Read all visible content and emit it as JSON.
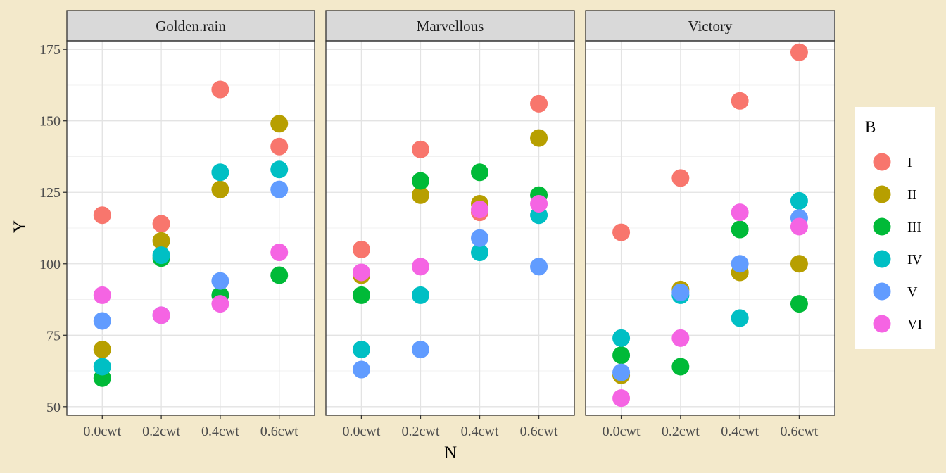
{
  "chart_data": {
    "type": "scatter",
    "xlabel": "N",
    "ylabel": "Y",
    "categories": [
      "0.0cwt",
      "0.2cwt",
      "0.4cwt",
      "0.6cwt"
    ],
    "y_ticks": [
      50,
      75,
      100,
      125,
      150,
      175
    ],
    "ylim": [
      47,
      178
    ],
    "grid": true,
    "legend": {
      "title": "B",
      "position": "right",
      "entries": [
        "I",
        "II",
        "III",
        "IV",
        "V",
        "VI"
      ]
    },
    "colors": {
      "I": "#F8766D",
      "II": "#B79F00",
      "III": "#00BA38",
      "IV": "#00BFC4",
      "V": "#619CFF",
      "VI": "#F564E3"
    },
    "facets": [
      {
        "name": "Golden.rain",
        "series": [
          {
            "name": "I",
            "values": [
              117,
              114,
              161,
              141
            ]
          },
          {
            "name": "II",
            "values": [
              70,
              108,
              126,
              149
            ]
          },
          {
            "name": "III",
            "values": [
              60,
              102,
              89,
              96
            ]
          },
          {
            "name": "IV",
            "values": [
              64,
              103,
              132,
              133
            ]
          },
          {
            "name": "V",
            "values": [
              80,
              82,
              94,
              126
            ]
          },
          {
            "name": "VI",
            "values": [
              89,
              82,
              86,
              104
            ]
          }
        ]
      },
      {
        "name": "Marvellous",
        "series": [
          {
            "name": "I",
            "values": [
              105,
              140,
              118,
              156
            ]
          },
          {
            "name": "II",
            "values": [
              96,
              124,
              121,
              144
            ]
          },
          {
            "name": "III",
            "values": [
              89,
              129,
              132,
              124
            ]
          },
          {
            "name": "IV",
            "values": [
              70,
              89,
              104,
              117
            ]
          },
          {
            "name": "V",
            "values": [
              63,
              70,
              109,
              99
            ]
          },
          {
            "name": "VI",
            "values": [
              97,
              99,
              119,
              121
            ]
          }
        ]
      },
      {
        "name": "Victory",
        "series": [
          {
            "name": "I",
            "values": [
              111,
              130,
              157,
              174
            ]
          },
          {
            "name": "II",
            "values": [
              61,
              91,
              97,
              100
            ]
          },
          {
            "name": "III",
            "values": [
              68,
              64,
              112,
              86
            ]
          },
          {
            "name": "IV",
            "values": [
              74,
              89,
              81,
              122
            ]
          },
          {
            "name": "V",
            "values": [
              62,
              90,
              100,
              116
            ]
          },
          {
            "name": "VI",
            "values": [
              53,
              74,
              118,
              113
            ]
          }
        ]
      }
    ]
  }
}
